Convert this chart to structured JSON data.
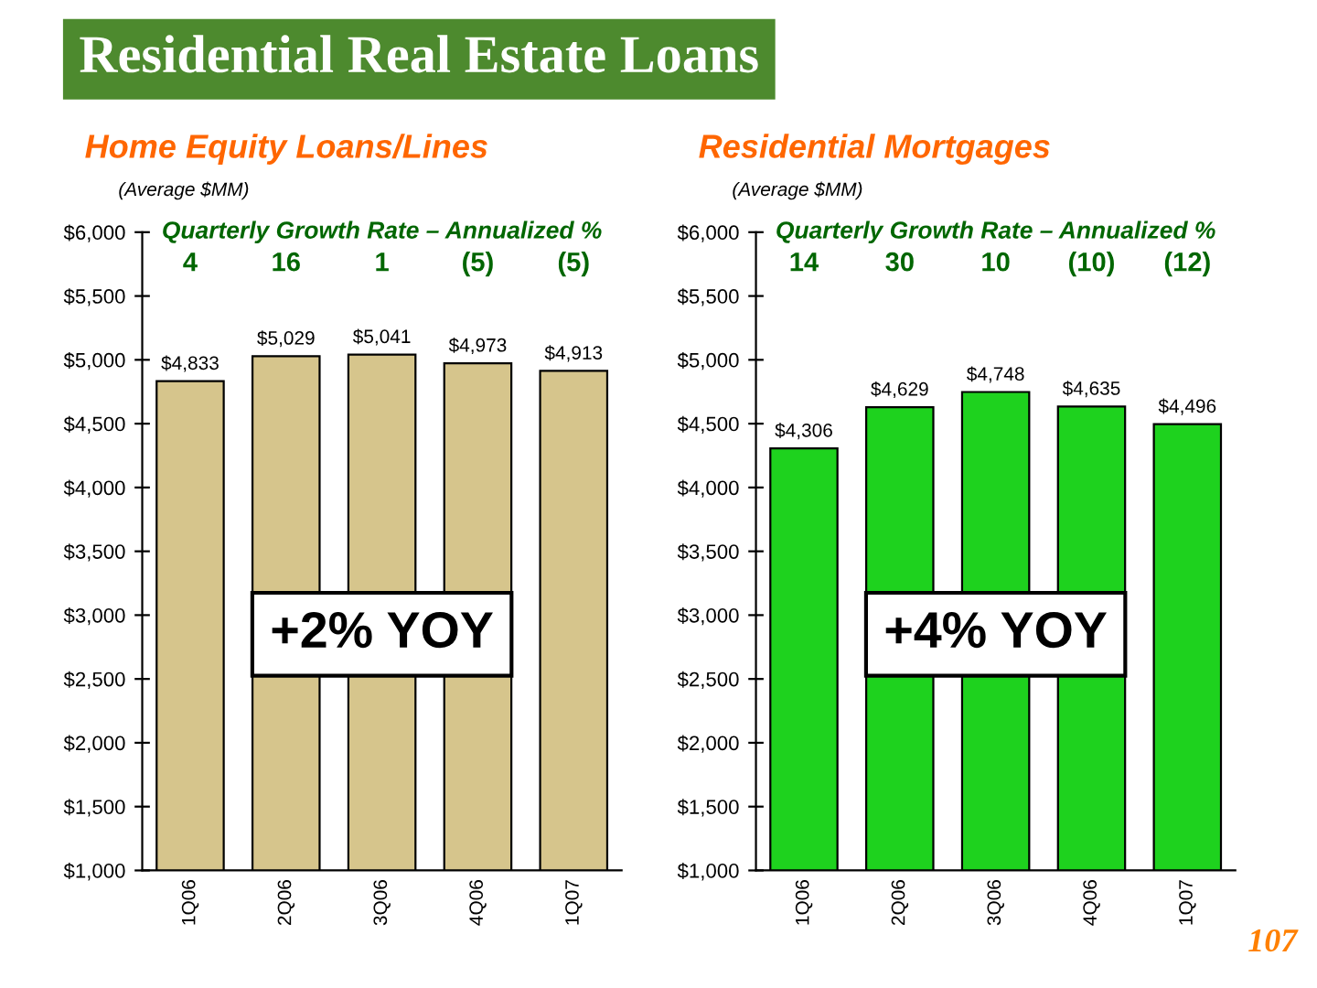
{
  "chart_data": [
    {
      "type": "bar",
      "title": "Home Equity Loans/Lines",
      "subtitle": "(Average $MM)",
      "categories": [
        "1Q06",
        "2Q06",
        "3Q06",
        "4Q06",
        "1Q07"
      ],
      "values": [
        4833,
        5029,
        5041,
        4973,
        4913
      ],
      "color": "#d6c58c",
      "value_labels": [
        "$4,833",
        "$5,029",
        "$5,041",
        "$4,973",
        "$4,913"
      ],
      "ylim": [
        1000,
        6000
      ],
      "yticks": [
        {
          "value": 1000,
          "label": "$1,000"
        },
        {
          "value": 1500,
          "label": "$1,500"
        },
        {
          "value": 2000,
          "label": "$2,000"
        },
        {
          "value": 2500,
          "label": "$2,500"
        },
        {
          "value": 3000,
          "label": "$3,000"
        },
        {
          "value": 3500,
          "label": "$3,500"
        },
        {
          "value": 4000,
          "label": "$4,000"
        },
        {
          "value": 4500,
          "label": "$4,500"
        },
        {
          "value": 5000,
          "label": "$5,000"
        },
        {
          "value": 5500,
          "label": "$5,500"
        },
        {
          "value": 6000,
          "label": "$6,000"
        }
      ],
      "annotations": [
        "Residential Real Estate Loans",
        "Quarterly Growth Rate – Annualized %",
        "+2% YOY",
        "4",
        "16",
        "1",
        "(5)",
        "(5)"
      ]
    },
    {
      "type": "bar",
      "title": "Residential Mortgages",
      "subtitle": "(Average $MM)",
      "categories": [
        "1Q06",
        "2Q06",
        "3Q06",
        "4Q06",
        "1Q07"
      ],
      "values": [
        4306,
        4629,
        4748,
        4635,
        4496
      ],
      "color": "#1ed21e",
      "value_labels": [
        "$4,306",
        "$4,629",
        "$4,748",
        "$4,635",
        "$4,496"
      ],
      "ylim": [
        1000,
        6000
      ],
      "yticks": [
        {
          "value": 1000,
          "label": "$1,000"
        },
        {
          "value": 1500,
          "label": "$1,500"
        },
        {
          "value": 2000,
          "label": "$2,000"
        },
        {
          "value": 2500,
          "label": "$2,500"
        },
        {
          "value": 3000,
          "label": "$3,000"
        },
        {
          "value": 3500,
          "label": "$3,500"
        },
        {
          "value": 4000,
          "label": "$4,000"
        },
        {
          "value": 4500,
          "label": "$4,500"
        },
        {
          "value": 5000,
          "label": "$5,000"
        },
        {
          "value": 5500,
          "label": "$5,500"
        },
        {
          "value": 6000,
          "label": "$6,000"
        }
      ],
      "annotations": [
        "Quarterly Growth Rate – Annualized %",
        "+4% YOY",
        "107",
        "14",
        "30",
        "10",
        "(10)",
        "(12)"
      ]
    }
  ]
}
